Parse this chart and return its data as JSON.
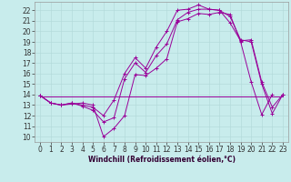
{
  "title": "",
  "xlabel": "Windchill (Refroidissement éolien,°C)",
  "background_color": "#c8ecec",
  "grid_color": "#b0d8d8",
  "line_color": "#990099",
  "xlim": [
    -0.5,
    23.5
  ],
  "ylim": [
    9.5,
    22.8
  ],
  "yticks": [
    10,
    11,
    12,
    13,
    14,
    15,
    16,
    17,
    18,
    19,
    20,
    21,
    22
  ],
  "xticks": [
    0,
    1,
    2,
    3,
    4,
    5,
    6,
    7,
    8,
    9,
    10,
    11,
    12,
    13,
    14,
    15,
    16,
    17,
    18,
    19,
    20,
    21,
    22,
    23
  ],
  "series": [
    {
      "x": [
        0,
        1,
        2,
        3,
        4,
        5,
        6,
        7,
        8,
        9,
        10,
        11,
        12,
        13,
        14,
        15,
        16,
        17,
        18,
        19,
        20,
        21,
        22
      ],
      "y": [
        13.9,
        13.2,
        13.0,
        13.1,
        13.2,
        13.0,
        10.0,
        10.8,
        12.0,
        15.9,
        15.8,
        16.5,
        17.4,
        20.9,
        21.2,
        21.7,
        21.6,
        21.8,
        21.6,
        19.0,
        15.2,
        12.1,
        14.0
      ],
      "marker": "+"
    },
    {
      "x": [
        0,
        1,
        2,
        3,
        4,
        5,
        6,
        7,
        8,
        9,
        10,
        11,
        12,
        13,
        14,
        15,
        16,
        17,
        18,
        19,
        20,
        21,
        22,
        23
      ],
      "y": [
        13.9,
        13.2,
        13.0,
        13.2,
        12.9,
        12.5,
        11.4,
        11.8,
        15.5,
        17.0,
        16.1,
        17.7,
        18.8,
        21.1,
        21.8,
        22.1,
        22.1,
        22.0,
        21.4,
        19.2,
        19.0,
        15.0,
        12.2,
        14.0
      ],
      "marker": "+"
    },
    {
      "x": [
        0,
        23
      ],
      "y": [
        13.8,
        13.8
      ],
      "marker": null
    },
    {
      "x": [
        0,
        1,
        2,
        3,
        4,
        5,
        6,
        7,
        8,
        9,
        10,
        11,
        12,
        13,
        14,
        15,
        16,
        17,
        18,
        19,
        20,
        21,
        22,
        23
      ],
      "y": [
        13.9,
        13.2,
        13.0,
        13.2,
        13.0,
        12.8,
        12.0,
        13.5,
        16.0,
        17.5,
        16.5,
        18.5,
        20.0,
        22.0,
        22.1,
        22.5,
        22.1,
        22.0,
        20.8,
        19.1,
        19.2,
        15.2,
        12.8,
        14.0
      ],
      "marker": "+"
    }
  ],
  "tick_fontsize": 5.5,
  "xlabel_fontsize": 5.5,
  "linewidth": 0.7,
  "markersize": 2.5
}
